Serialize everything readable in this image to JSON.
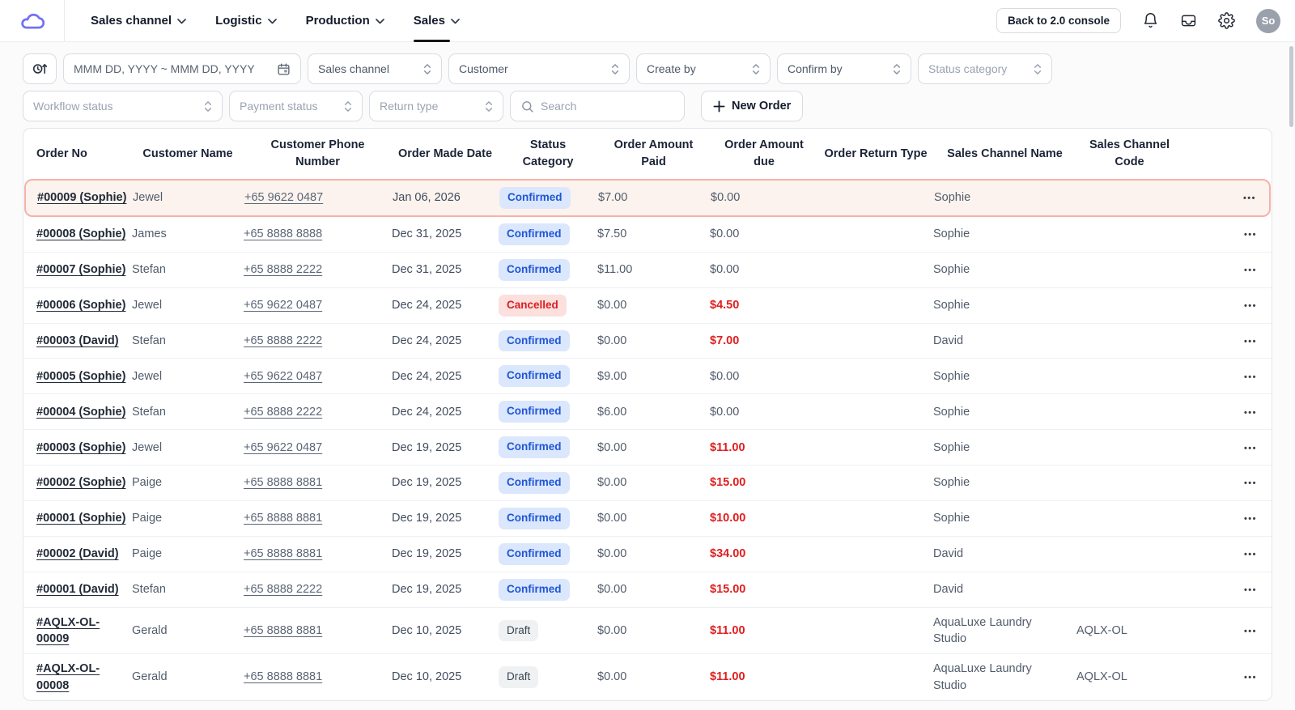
{
  "nav": {
    "menu": [
      {
        "label": "Sales channel"
      },
      {
        "label": "Logistic"
      },
      {
        "label": "Production"
      },
      {
        "label": "Sales"
      }
    ],
    "back_button_label": "Back to 2.0 console",
    "avatar_initials": "So"
  },
  "filters": {
    "date_range_placeholder": "MMM DD, YYYY ~ MMM DD, YYYY",
    "sales_channel": "Sales channel",
    "customer": "Customer",
    "create_by": "Create by",
    "confirm_by": "Confirm by",
    "status_category": "Status category",
    "workflow_status": "Workflow status",
    "payment_status": "Payment status",
    "return_type": "Return type",
    "search_placeholder": "Search",
    "new_order_label": "New Order"
  },
  "table": {
    "columns": [
      "Order No",
      "Customer Name",
      "Customer Phone Number",
      "Order Made Date",
      "Status Category",
      "Order Amount Paid",
      "Order Amount due",
      "Order Return Type",
      "Sales Channel Name",
      "Sales Channel Code"
    ],
    "actions_label": "•••",
    "rows": [
      {
        "order_no": "#00009 (Sophie)",
        "customer_name": "Jewel",
        "phone": "+65 9622 0487",
        "order_date": "Jan 06, 2026",
        "status": "Confirmed",
        "status_type": "confirmed",
        "amount_paid": "$7.00",
        "amount_due": "$0.00",
        "due_red": false,
        "return_type": "",
        "channel_name": "Sophie",
        "channel_code": "",
        "highlighted": true,
        "wrap": false
      },
      {
        "order_no": "#00008 (Sophie)",
        "customer_name": "James",
        "phone": "+65 8888 8888",
        "order_date": "Dec 31, 2025",
        "status": "Confirmed",
        "status_type": "confirmed",
        "amount_paid": "$7.50",
        "amount_due": "$0.00",
        "due_red": false,
        "return_type": "",
        "channel_name": "Sophie",
        "channel_code": "",
        "highlighted": false,
        "wrap": false
      },
      {
        "order_no": "#00007 (Sophie)",
        "customer_name": "Stefan",
        "phone": "+65 8888 2222",
        "order_date": "Dec 31, 2025",
        "status": "Confirmed",
        "status_type": "confirmed",
        "amount_paid": "$11.00",
        "amount_due": "$0.00",
        "due_red": false,
        "return_type": "",
        "channel_name": "Sophie",
        "channel_code": "",
        "highlighted": false,
        "wrap": false
      },
      {
        "order_no": "#00006 (Sophie)",
        "customer_name": "Jewel",
        "phone": "+65 9622 0487",
        "order_date": "Dec 24, 2025",
        "status": "Cancelled",
        "status_type": "cancelled",
        "amount_paid": "$0.00",
        "amount_due": "$4.50",
        "due_red": true,
        "return_type": "",
        "channel_name": "Sophie",
        "channel_code": "",
        "highlighted": false,
        "wrap": false
      },
      {
        "order_no": "#00003 (David)",
        "customer_name": "Stefan",
        "phone": "+65 8888 2222",
        "order_date": "Dec 24, 2025",
        "status": "Confirmed",
        "status_type": "confirmed",
        "amount_paid": "$0.00",
        "amount_due": "$7.00",
        "due_red": true,
        "return_type": "",
        "channel_name": "David",
        "channel_code": "",
        "highlighted": false,
        "wrap": false
      },
      {
        "order_no": "#00005 (Sophie)",
        "customer_name": "Jewel",
        "phone": "+65 9622 0487",
        "order_date": "Dec 24, 2025",
        "status": "Confirmed",
        "status_type": "confirmed",
        "amount_paid": "$9.00",
        "amount_due": "$0.00",
        "due_red": false,
        "return_type": "",
        "channel_name": "Sophie",
        "channel_code": "",
        "highlighted": false,
        "wrap": false
      },
      {
        "order_no": "#00004 (Sophie)",
        "customer_name": "Stefan",
        "phone": "+65 8888 2222",
        "order_date": "Dec 24, 2025",
        "status": "Confirmed",
        "status_type": "confirmed",
        "amount_paid": "$6.00",
        "amount_due": "$0.00",
        "due_red": false,
        "return_type": "",
        "channel_name": "Sophie",
        "channel_code": "",
        "highlighted": false,
        "wrap": false
      },
      {
        "order_no": "#00003 (Sophie)",
        "customer_name": "Jewel",
        "phone": "+65 9622 0487",
        "order_date": "Dec 19, 2025",
        "status": "Confirmed",
        "status_type": "confirmed",
        "amount_paid": "$0.00",
        "amount_due": "$11.00",
        "due_red": true,
        "return_type": "",
        "channel_name": "Sophie",
        "channel_code": "",
        "highlighted": false,
        "wrap": false
      },
      {
        "order_no": "#00002 (Sophie)",
        "customer_name": "Paige",
        "phone": "+65 8888 8881",
        "order_date": "Dec 19, 2025",
        "status": "Confirmed",
        "status_type": "confirmed",
        "amount_paid": "$0.00",
        "amount_due": "$15.00",
        "due_red": true,
        "return_type": "",
        "channel_name": "Sophie",
        "channel_code": "",
        "highlighted": false,
        "wrap": false
      },
      {
        "order_no": "#00001 (Sophie)",
        "customer_name": "Paige",
        "phone": "+65 8888 8881",
        "order_date": "Dec 19, 2025",
        "status": "Confirmed",
        "status_type": "confirmed",
        "amount_paid": "$0.00",
        "amount_due": "$10.00",
        "due_red": true,
        "return_type": "",
        "channel_name": "Sophie",
        "channel_code": "",
        "highlighted": false,
        "wrap": false
      },
      {
        "order_no": "#00002 (David)",
        "customer_name": "Paige",
        "phone": "+65 8888 8881",
        "order_date": "Dec 19, 2025",
        "status": "Confirmed",
        "status_type": "confirmed",
        "amount_paid": "$0.00",
        "amount_due": "$34.00",
        "due_red": true,
        "return_type": "",
        "channel_name": "David",
        "channel_code": "",
        "highlighted": false,
        "wrap": false
      },
      {
        "order_no": "#00001 (David)",
        "customer_name": "Stefan",
        "phone": "+65 8888 2222",
        "order_date": "Dec 19, 2025",
        "status": "Confirmed",
        "status_type": "confirmed",
        "amount_paid": "$0.00",
        "amount_due": "$15.00",
        "due_red": true,
        "return_type": "",
        "channel_name": "David",
        "channel_code": "",
        "highlighted": false,
        "wrap": false
      },
      {
        "order_no": "#AQLX-OL-00009",
        "customer_name": "Gerald",
        "phone": "+65 8888 8881",
        "order_date": "Dec 10, 2025",
        "status": "Draft",
        "status_type": "draft",
        "amount_paid": "$0.00",
        "amount_due": "$11.00",
        "due_red": true,
        "return_type": "",
        "channel_name": "AquaLuxe Laundry Studio",
        "channel_code": "AQLX-OL",
        "highlighted": false,
        "wrap": true
      },
      {
        "order_no": "#AQLX-OL-00008",
        "customer_name": "Gerald",
        "phone": "+65 8888 8881",
        "order_date": "Dec 10, 2025",
        "status": "Draft",
        "status_type": "draft",
        "amount_paid": "$0.00",
        "amount_due": "$11.00",
        "due_red": true,
        "return_type": "",
        "channel_name": "AquaLuxe Laundry Studio",
        "channel_code": "AQLX-OL",
        "highlighted": false,
        "wrap": true
      }
    ]
  },
  "colors": {
    "confirmed_bg": "#dbe7fc",
    "confirmed_text": "#1f56d6",
    "cancelled_bg": "#fbe0de",
    "cancelled_text": "#d92020",
    "draft_bg": "#eff1f3",
    "draft_text": "#3a4554",
    "due_red": "#e01f1f",
    "highlight_border": "#f6b2a8",
    "highlight_bg": "#fcf3ee"
  }
}
